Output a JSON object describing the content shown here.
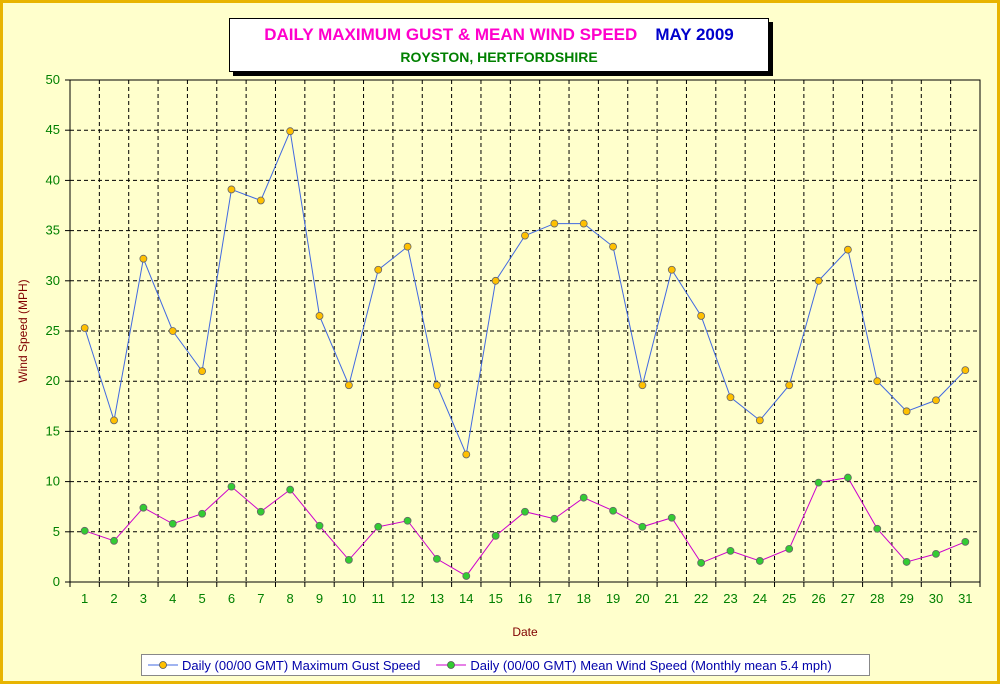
{
  "title": {
    "main": "DAILY MAXIMUM GUST & MEAN WIND SPEED",
    "date": "MAY 2009",
    "subtitle": "ROYSTON, HERTFORDSHIRE"
  },
  "colors": {
    "frame_border": "#e8b400",
    "background": "#ffffcc",
    "gust_line": "#4169e1",
    "gust_marker": "#ffc000",
    "mean_line": "#cc00cc",
    "mean_marker": "#33cc33",
    "tick_text": "#008000",
    "axis_title": "#800000"
  },
  "chart_data": {
    "type": "line",
    "title": "DAILY MAXIMUM GUST & MEAN WIND SPEED",
    "xlabel": "Date",
    "ylabel": "Wind Speed (MPH)",
    "ylim": [
      0,
      50
    ],
    "yticks": [
      0,
      5,
      10,
      15,
      20,
      25,
      30,
      35,
      40,
      45,
      50
    ],
    "grid": true,
    "legend_position": "bottom",
    "categories": [
      "1",
      "2",
      "3",
      "4",
      "5",
      "6",
      "7",
      "8",
      "9",
      "10",
      "11",
      "12",
      "13",
      "14",
      "15",
      "16",
      "17",
      "18",
      "19",
      "20",
      "21",
      "22",
      "23",
      "24",
      "25",
      "26",
      "27",
      "28",
      "29",
      "30",
      "31"
    ],
    "series": [
      {
        "name": "Daily (00/00 GMT) Maximum Gust Speed",
        "values": [
          25.3,
          16.1,
          32.2,
          25.0,
          21.0,
          39.1,
          38.0,
          44.9,
          26.5,
          19.6,
          31.1,
          33.4,
          19.6,
          12.7,
          30.0,
          34.5,
          35.7,
          35.7,
          33.4,
          19.6,
          31.1,
          26.5,
          18.4,
          16.1,
          19.6,
          30.0,
          33.1,
          20.0,
          17.0,
          18.1,
          21.1
        ]
      },
      {
        "name": "Daily (00/00 GMT) Mean Wind Speed (Monthly mean 5.4 mph)",
        "values": [
          5.1,
          4.1,
          7.4,
          5.8,
          6.8,
          9.5,
          7.0,
          9.2,
          5.6,
          2.2,
          5.5,
          6.1,
          2.3,
          0.6,
          4.6,
          7.0,
          6.3,
          8.4,
          7.1,
          5.5,
          6.4,
          1.9,
          3.1,
          2.1,
          3.3,
          9.9,
          10.4,
          5.3,
          2.0,
          2.8,
          4.0
        ]
      }
    ]
  }
}
